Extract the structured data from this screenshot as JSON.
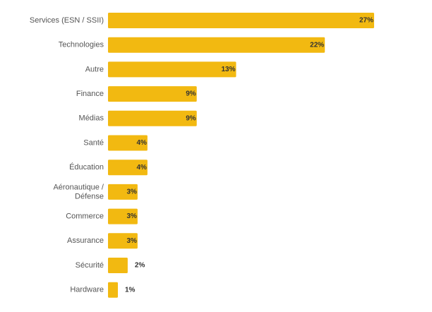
{
  "chart_data": {
    "type": "bar",
    "orientation": "horizontal",
    "categories": [
      "Services (ESN / SSII)",
      "Technologies",
      "Autre",
      "Finance",
      "Médias",
      "Santé",
      "Éducation",
      "Aéronautique / Défense",
      "Commerce",
      "Assurance",
      "Sécurité",
      "Hardware"
    ],
    "category_lines": [
      [
        "Services (ESN / SSII)"
      ],
      [
        "Technologies"
      ],
      [
        "Autre"
      ],
      [
        "Finance"
      ],
      [
        "Médias"
      ],
      [
        "Santé"
      ],
      [
        "Éducation"
      ],
      [
        "Aéronautique /",
        "Défense"
      ],
      [
        "Commerce"
      ],
      [
        "Assurance"
      ],
      [
        "Sécurité"
      ],
      [
        "Hardware"
      ]
    ],
    "values": [
      27,
      22,
      13,
      9,
      9,
      4,
      4,
      3,
      3,
      3,
      2,
      1
    ],
    "value_labels": [
      "27%",
      "22%",
      "13%",
      "9%",
      "9%",
      "4%",
      "4%",
      "3%",
      "3%",
      "3%",
      "2%",
      "1%"
    ],
    "xlim": [
      0,
      27
    ],
    "bar_color": "#F2B911",
    "label_color": "#555555",
    "value_label_color": "#333333",
    "grid": false,
    "legend": "none",
    "title": "",
    "xlabel": "",
    "ylabel": ""
  }
}
